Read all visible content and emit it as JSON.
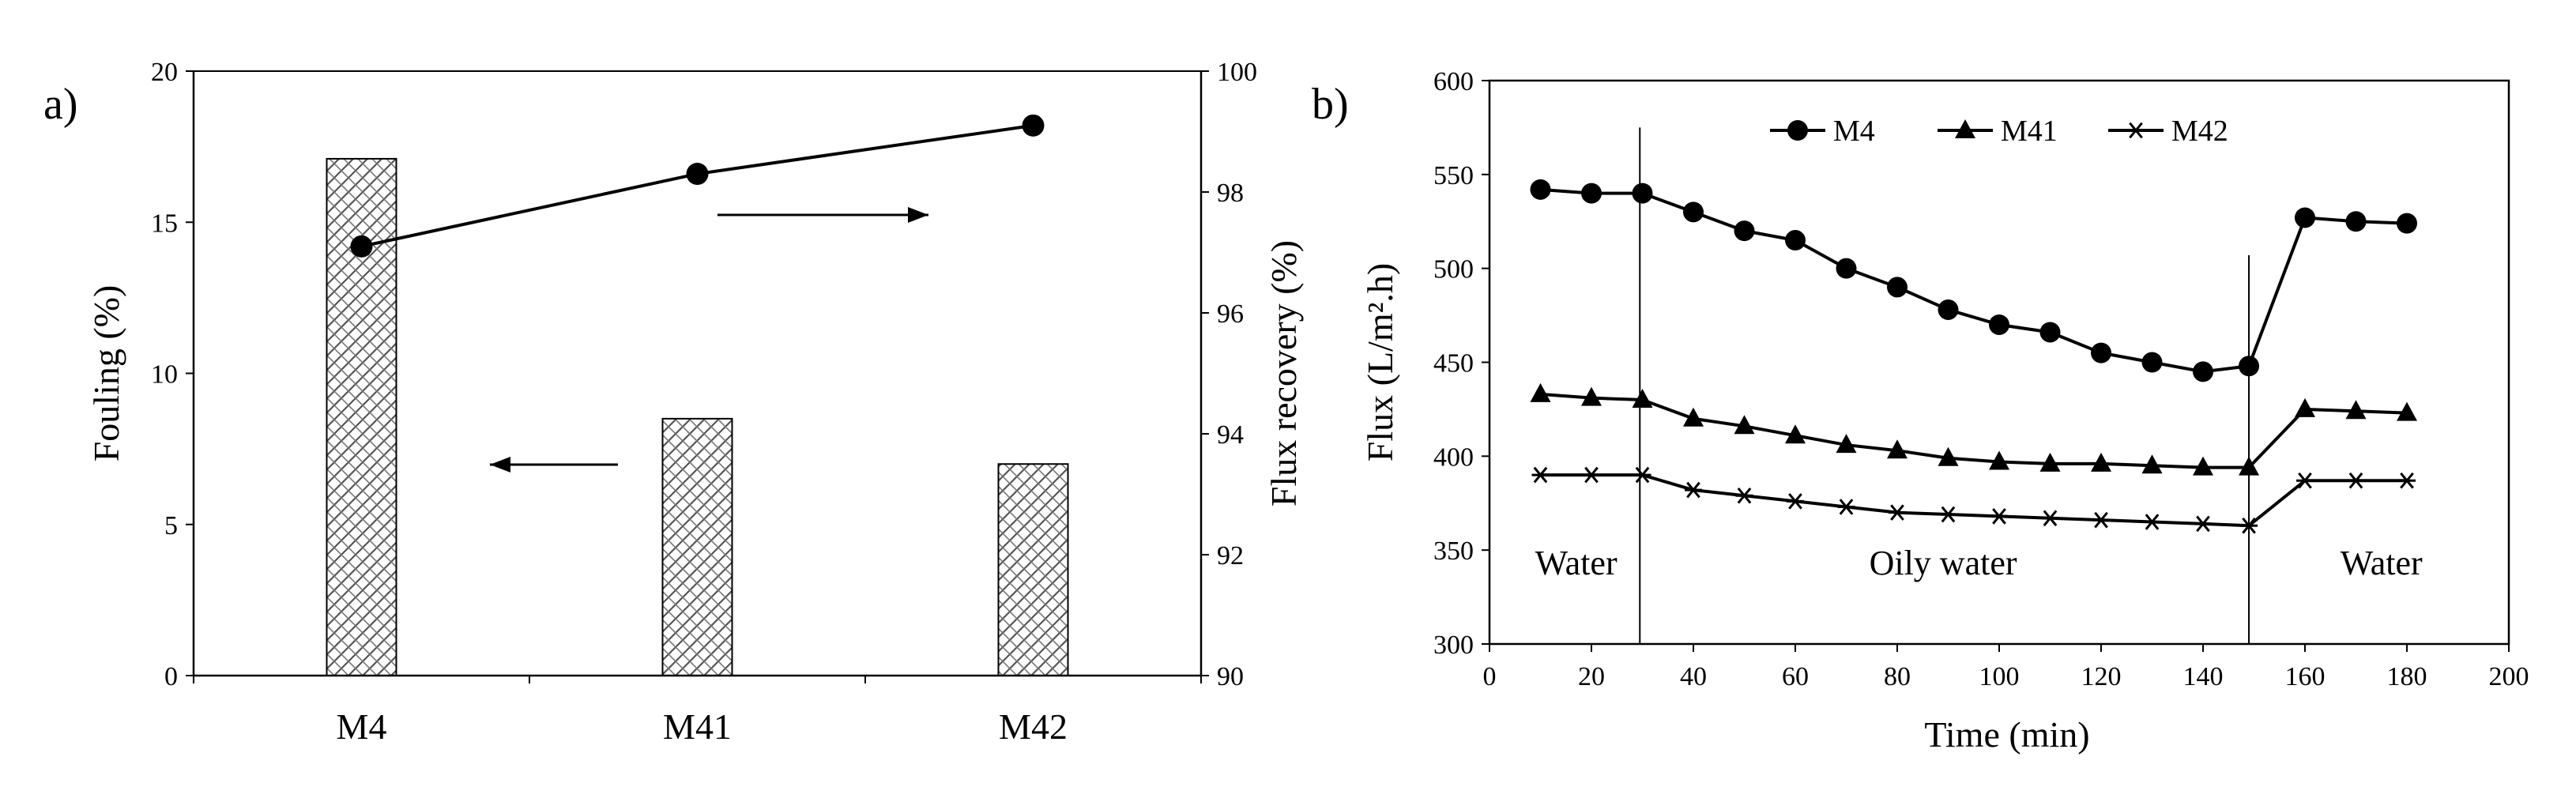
{
  "chart_data": [
    {
      "panel_label": "a)",
      "type": "bar",
      "categories": [
        "M4",
        "M41",
        "M42"
      ],
      "bar_series": {
        "name": "Fouling (%)",
        "values": [
          17.1,
          8.5,
          7.0
        ],
        "pattern": "hatched"
      },
      "line_series": {
        "name": "Flux recovery (%)",
        "values": [
          97.1,
          98.3,
          99.1
        ]
      },
      "ylabel": "Fouling (%)",
      "ylim": [
        0,
        20
      ],
      "yticks": [
        "0",
        "5",
        "10",
        "15",
        "20"
      ],
      "y2label": "Flux recovery (%)",
      "y2lim": [
        90,
        100
      ],
      "y2ticks": [
        "90",
        "92",
        "94",
        "96",
        "98",
        "100"
      ],
      "arrows": [
        "right",
        "left"
      ]
    },
    {
      "panel_label": "b)",
      "type": "line",
      "xlabel": "Time (min)",
      "ylabel": "Flux (L/m².h)",
      "xlim": [
        0,
        200
      ],
      "ylim": [
        300,
        600
      ],
      "xticks": [
        "0",
        "20",
        "40",
        "60",
        "80",
        "100",
        "120",
        "140",
        "160",
        "180",
        "200"
      ],
      "yticks": [
        "300",
        "350",
        "400",
        "450",
        "500",
        "550",
        "600"
      ],
      "x": [
        10,
        20,
        30,
        40,
        50,
        60,
        70,
        80,
        90,
        100,
        110,
        120,
        130,
        140,
        149,
        160,
        170,
        180
      ],
      "series": [
        {
          "name": "M4",
          "marker": "circle",
          "values": [
            542,
            540,
            540,
            530,
            520,
            515,
            500,
            490,
            478,
            470,
            466,
            455,
            450,
            445,
            448,
            527,
            525,
            524
          ]
        },
        {
          "name": "M41",
          "marker": "triangle",
          "values": [
            433,
            431,
            430,
            420,
            416,
            411,
            406,
            403,
            399,
            397,
            396,
            396,
            395,
            394,
            394,
            425,
            424,
            423
          ]
        },
        {
          "name": "M42",
          "marker": "asterisk",
          "values": [
            390,
            390,
            390,
            382,
            379,
            376,
            373,
            370,
            369,
            368,
            367,
            366,
            365,
            364,
            363,
            387,
            387,
            387
          ]
        }
      ],
      "phase_boundaries_x": [
        29.5,
        149
      ],
      "phase_labels": [
        "Water",
        "Oily water",
        "Water"
      ]
    }
  ]
}
